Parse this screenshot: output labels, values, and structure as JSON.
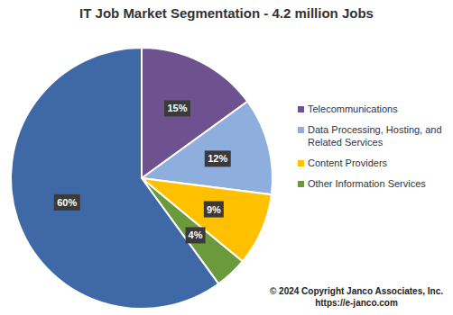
{
  "chart_data": {
    "type": "pie",
    "title": "IT Job Market Segmentation - 4.2 million Jobs",
    "categories": [
      "Telecommunications",
      "Data Processing, Hosting, and Related Services",
      "Content Providers",
      "Other Information Services",
      null
    ],
    "values": [
      15,
      12,
      9,
      4,
      60
    ],
    "value_labels": [
      "15%",
      "12%",
      "9%",
      "4%",
      "60%"
    ],
    "data_labels": true,
    "colors": [
      "#6e5290",
      "#8eaede",
      "#ffc000",
      "#6b9a3c",
      "#3f69a6"
    ],
    "legend": "right",
    "annotations": [
      "© 2024 Copyright Janco Associates, Inc.",
      "https://e-janco.com"
    ]
  }
}
